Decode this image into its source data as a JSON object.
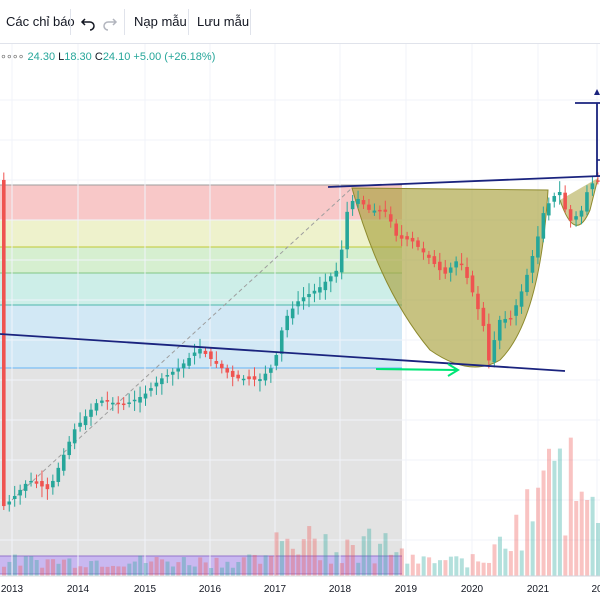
{
  "toolbar": {
    "indicators_label": "Các chỉ báo",
    "undo_icon": "undo-icon",
    "redo_icon": "redo-icon",
    "load_template_label": "Nạp mẫu",
    "save_template_label": "Lưu mẫu"
  },
  "legend": {
    "dots": "∘∘∘∘",
    "high_value": "24.30",
    "low_label": "L",
    "low_value": "18.30",
    "close_label": "C",
    "close_value": "24.10",
    "change": "+5.00 (+26.18%)"
  },
  "colors": {
    "up": "#26a69a",
    "down": "#ef5350",
    "trendline": "#1a237e",
    "cup_fill": "#a9a23e",
    "arrow": "#00e676",
    "fib_red": "#f8c8c8",
    "fib_yellow": "#eef2cc",
    "fib_green": "#d6efd0",
    "fib_teal": "#cdeee8",
    "fib_blue": "#d2e8f5",
    "fib_gray": "#e3e3e3",
    "volume_purple": "#c9b8f0"
  },
  "chart_data": {
    "type": "candlestick",
    "x_axis_labels": [
      "2013",
      "2014",
      "2015",
      "2016",
      "2017",
      "2018",
      "2019",
      "2020",
      "2021",
      "20"
    ],
    "grid": true,
    "annotations": [
      "cup-and-handle pattern",
      "fibonacci retracement levels",
      "upper trendline",
      "lower trendline",
      "green arrow to cup bottom",
      "target projection bracket"
    ]
  }
}
